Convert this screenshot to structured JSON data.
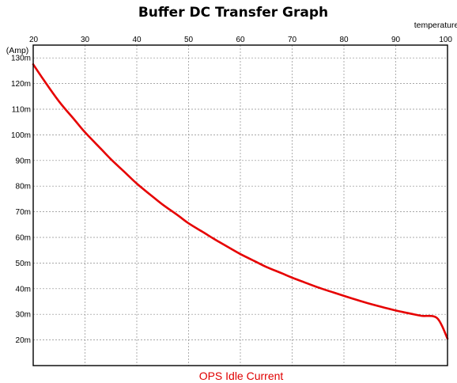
{
  "chart_data": {
    "type": "line",
    "title": "Buffer DC Transfer Graph",
    "xlabel": "temperature",
    "ylabel": "(Amp)",
    "xlim": [
      20,
      100
    ],
    "ylim": [
      10,
      135
    ],
    "x_ticks": [
      "20",
      "30",
      "40",
      "50",
      "60",
      "70",
      "80",
      "90",
      "100"
    ],
    "y_ticks": [
      "20m",
      "30m",
      "40m",
      "50m",
      "60m",
      "70m",
      "80m",
      "90m",
      "100m",
      "110m",
      "120m",
      "130m"
    ],
    "y_unit": "mA",
    "grid": true,
    "x_axis_position": "top",
    "legend_position": "bottom-center",
    "series": [
      {
        "name": "OPS Idle Current",
        "color": "#e60000",
        "x": [
          20,
          22,
          25,
          28,
          30,
          33,
          35,
          38,
          40,
          43,
          45,
          48,
          50,
          53,
          55,
          58,
          60,
          63,
          65,
          68,
          70,
          73,
          75,
          78,
          80,
          83,
          85,
          88,
          90,
          93,
          95,
          98,
          100
        ],
        "y": [
          127.5,
          121.5,
          113,
          105.8,
          101,
          94.7,
          90.5,
          84.8,
          81,
          76,
          72.8,
          68.5,
          65.5,
          61.8,
          59.3,
          55.8,
          53.5,
          50.5,
          48.5,
          46,
          44.3,
          42,
          40.5,
          38.5,
          37.2,
          35.3,
          34.1,
          32.5,
          31.5,
          30.2,
          29.4,
          28.5,
          20.5
        ]
      }
    ]
  }
}
